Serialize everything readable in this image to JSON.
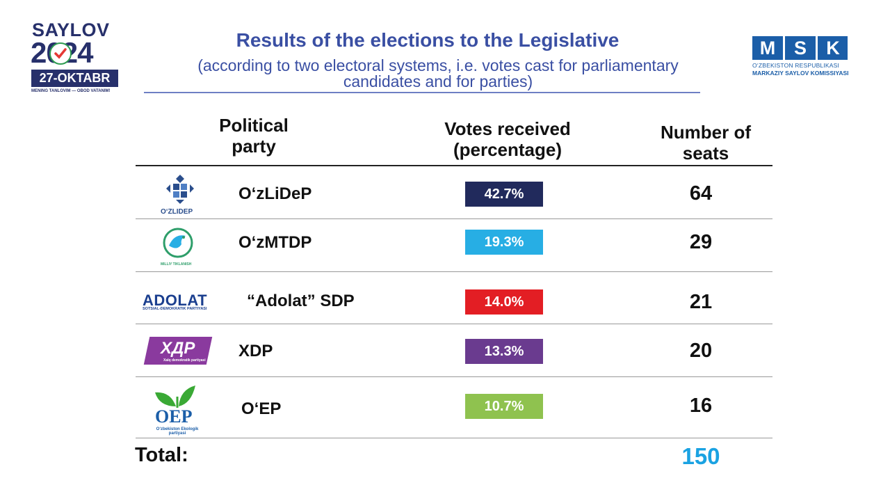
{
  "election_logo": {
    "word": "SAYLOV",
    "year": "2024",
    "date": "27-OKTABR",
    "slogan": "MENING TANLOVIM — OBOD VATANIM!"
  },
  "commission_logo": {
    "letters": [
      "M",
      "S",
      "K"
    ],
    "line1": "O‘ZBEKISTON RESPUBLIKASI",
    "line2": "MARKAZIY SAYLOV KOMISSIYASI"
  },
  "title": "Results of the elections to the Legislative",
  "subtitle": "(according to two electoral systems, i.e. votes cast for parliamentary candidates and for parties)",
  "table": {
    "headers": {
      "party": "Political party",
      "votes": "Votes received (percentage)",
      "seats": "Number of seats"
    },
    "rows": [
      {
        "logo_icon": "ozlidep-logo",
        "logo_text": "O‘ZLIDEP",
        "party": "O‘zLiDeP",
        "votes": "42.7%",
        "votes_value": 42.7,
        "seats": "64",
        "color": "#212a5c"
      },
      {
        "logo_icon": "ozmtdp-logo",
        "logo_text": "MILLIY TIKLANISH",
        "party": "O‘zMTDP",
        "votes": "19.3%",
        "votes_value": 19.3,
        "seats": "29",
        "color": "#27aee4"
      },
      {
        "logo_icon": "adolat-logo",
        "logo_text": "ADOLAT",
        "logo_subtext": "SOTSIAL-DEMOKRATIK PARTIYASI",
        "party": "“Adolat” SDP",
        "votes": "14.0%",
        "votes_value": 14.0,
        "seats": "21",
        "color": "#e31e24"
      },
      {
        "logo_icon": "xdp-logo",
        "logo_text": "ХДР",
        "logo_subtext": "Xalq demokratik partiyasi",
        "party": "XDP",
        "votes": "13.3%",
        "votes_value": 13.3,
        "seats": "20",
        "color": "#6a3b8f"
      },
      {
        "logo_icon": "oep-logo",
        "logo_text": "OEP",
        "logo_subtext": "O‘zbekiston Ekologik partiyasi",
        "party": "O‘EP",
        "votes": "10.7%",
        "votes_value": 10.7,
        "seats": "16",
        "color": "#8fc24f"
      }
    ],
    "total_label": "Total:",
    "total_seats": "150"
  }
}
